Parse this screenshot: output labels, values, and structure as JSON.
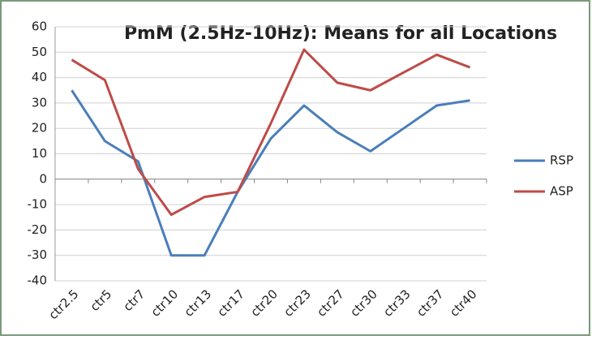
{
  "chart_data": {
    "type": "line",
    "title": "PmM (2.5Hz-10Hz): Means for all Locations",
    "categories": [
      "ctr2.5",
      "ctr5",
      "ctr7",
      "ctr10",
      "ctr13",
      "ctr17",
      "ctr20",
      "ctr23",
      "ctr27",
      "ctr30",
      "ctr33",
      "ctr37",
      "ctr40"
    ],
    "series": [
      {
        "name": "RSP",
        "color": "#4a7ebb",
        "values": [
          35,
          15,
          7,
          -30,
          -30,
          -5,
          16,
          29,
          18.5,
          11,
          20,
          29,
          31
        ]
      },
      {
        "name": "ASP",
        "color": "#be4b48",
        "values": [
          47,
          39,
          4,
          -14,
          -7,
          -5,
          22,
          51,
          38,
          35,
          42,
          49,
          44
        ]
      }
    ],
    "ylim": [
      -40,
      60
    ],
    "yticks": [
      -40,
      -30,
      -20,
      -10,
      0,
      10,
      20,
      30,
      40,
      50,
      60
    ],
    "grid": true,
    "legend": "right"
  }
}
